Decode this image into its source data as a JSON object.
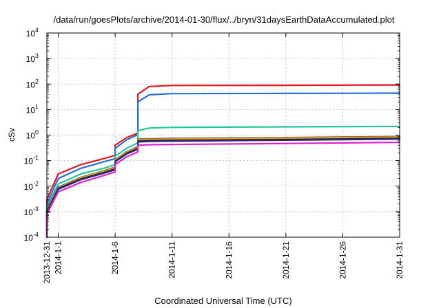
{
  "chart_data": {
    "type": "line",
    "title": "/data/run/goesPlots/archive/2014-01-30/flux/../bryn/31daysEarthDataAccumulated.plot",
    "xlabel": "Coordinated Universal Time (UTC)",
    "ylabel": "cSv",
    "yscale": "log",
    "ylim": [
      0.0001,
      10000
    ],
    "xlim": [
      "2013-12-31",
      "2014-01-31"
    ],
    "grid": true,
    "x_ticks": [
      {
        "date": "2013-12-31",
        "label": "2013-12-31"
      },
      {
        "date": "2014-01-01",
        "label": "2014-1-1"
      },
      {
        "date": "2014-01-06",
        "label": "2014-1-6"
      },
      {
        "date": "2014-01-11",
        "label": "2014-1-11"
      },
      {
        "date": "2014-01-16",
        "label": "2014-1-16"
      },
      {
        "date": "2014-01-21",
        "label": "2014-1-21"
      },
      {
        "date": "2014-01-26",
        "label": "2014-1-26"
      },
      {
        "date": "2014-01-31",
        "label": "2014-1-31"
      }
    ],
    "y_ticks": [
      {
        "value": 0.0001,
        "mant": "10",
        "exp": "-4"
      },
      {
        "value": 0.001,
        "mant": "10",
        "exp": "-3"
      },
      {
        "value": 0.01,
        "mant": "10",
        "exp": "-2"
      },
      {
        "value": 0.1,
        "mant": "10",
        "exp": "-1"
      },
      {
        "value": 1,
        "mant": "10",
        "exp": "0"
      },
      {
        "value": 10,
        "mant": "10",
        "exp": "1"
      },
      {
        "value": 100,
        "mant": "10",
        "exp": "2"
      },
      {
        "value": 1000,
        "mant": "10",
        "exp": "3"
      },
      {
        "value": 10000,
        "mant": "10",
        "exp": "4"
      }
    ],
    "series": [
      {
        "color": "#e8141a",
        "points": [
          [
            "2013-12-31",
            0.0001
          ],
          [
            "2013-12-31",
            0.003
          ],
          [
            "2014-01-01",
            0.03
          ],
          [
            "2014-01-03",
            0.07
          ],
          [
            "2014-01-05",
            0.12
          ],
          [
            "2014-01-06",
            0.16
          ],
          [
            "2014-01-06",
            0.4
          ],
          [
            "2014-01-07",
            0.8
          ],
          [
            "2014-01-08",
            1.2
          ],
          [
            "2014-01-08",
            2
          ],
          [
            "2014-01-08",
            40
          ],
          [
            "2014-01-09",
            80
          ],
          [
            "2014-01-11",
            88
          ],
          [
            "2014-01-21",
            89
          ],
          [
            "2014-01-31",
            92
          ]
        ]
      },
      {
        "color": "#1f6fe0",
        "points": [
          [
            "2013-12-31",
            0.0001
          ],
          [
            "2013-12-31",
            0.002
          ],
          [
            "2014-01-01",
            0.02
          ],
          [
            "2014-01-03",
            0.05
          ],
          [
            "2014-01-05",
            0.09
          ],
          [
            "2014-01-06",
            0.12
          ],
          [
            "2014-01-06",
            0.3
          ],
          [
            "2014-01-07",
            0.65
          ],
          [
            "2014-01-08",
            1.05
          ],
          [
            "2014-01-08",
            1.6
          ],
          [
            "2014-01-08",
            20
          ],
          [
            "2014-01-09",
            38
          ],
          [
            "2014-01-11",
            42
          ],
          [
            "2014-01-21",
            43
          ],
          [
            "2014-01-31",
            44
          ]
        ]
      },
      {
        "color": "#1ec79b",
        "points": [
          [
            "2013-12-31",
            0.0001
          ],
          [
            "2013-12-31",
            0.0015
          ],
          [
            "2014-01-01",
            0.012
          ],
          [
            "2014-01-03",
            0.03
          ],
          [
            "2014-01-05",
            0.05
          ],
          [
            "2014-01-06",
            0.07
          ],
          [
            "2014-01-06",
            0.15
          ],
          [
            "2014-01-07",
            0.3
          ],
          [
            "2014-01-08",
            0.5
          ],
          [
            "2014-01-08",
            0.8
          ],
          [
            "2014-01-08",
            1.5
          ],
          [
            "2014-01-09",
            1.9
          ],
          [
            "2014-01-11",
            2
          ],
          [
            "2014-01-21",
            2.1
          ],
          [
            "2014-01-31",
            2.2
          ]
        ]
      },
      {
        "color": "#555555",
        "points": [
          [
            "2013-12-31",
            0.0001
          ],
          [
            "2013-12-31",
            0.0012
          ],
          [
            "2014-01-01",
            0.009
          ],
          [
            "2014-01-03",
            0.022
          ],
          [
            "2014-01-05",
            0.04
          ],
          [
            "2014-01-06",
            0.055
          ],
          [
            "2014-01-06",
            0.11
          ],
          [
            "2014-01-07",
            0.22
          ],
          [
            "2014-01-08",
            0.35
          ],
          [
            "2014-01-08",
            0.55
          ],
          [
            "2014-01-08",
            0.7
          ],
          [
            "2014-01-09",
            0.72
          ],
          [
            "2014-01-11",
            0.74
          ],
          [
            "2014-01-21",
            0.8
          ],
          [
            "2014-01-31",
            0.88
          ]
        ]
      },
      {
        "color": "#e8a020",
        "points": [
          [
            "2013-12-31",
            0.0001
          ],
          [
            "2013-12-31",
            0.0011
          ],
          [
            "2014-01-01",
            0.0085
          ],
          [
            "2014-01-03",
            0.021
          ],
          [
            "2014-01-05",
            0.038
          ],
          [
            "2014-01-06",
            0.052
          ],
          [
            "2014-01-06",
            0.105
          ],
          [
            "2014-01-07",
            0.21
          ],
          [
            "2014-01-08",
            0.33
          ],
          [
            "2014-01-08",
            0.52
          ],
          [
            "2014-01-08",
            0.66
          ],
          [
            "2014-01-09",
            0.68
          ],
          [
            "2014-01-11",
            0.7
          ],
          [
            "2014-01-21",
            0.76
          ],
          [
            "2014-01-31",
            0.84
          ]
        ]
      },
      {
        "color": "#1a1a1a",
        "points": [
          [
            "2013-12-31",
            0.0001
          ],
          [
            "2013-12-31",
            0.001
          ],
          [
            "2014-01-01",
            0.008
          ],
          [
            "2014-01-03",
            0.019
          ],
          [
            "2014-01-05",
            0.034
          ],
          [
            "2014-01-06",
            0.047
          ],
          [
            "2014-01-06",
            0.095
          ],
          [
            "2014-01-07",
            0.19
          ],
          [
            "2014-01-08",
            0.3
          ],
          [
            "2014-01-08",
            0.46
          ],
          [
            "2014-01-08",
            0.58
          ],
          [
            "2014-01-09",
            0.6
          ],
          [
            "2014-01-11",
            0.62
          ],
          [
            "2014-01-21",
            0.67
          ],
          [
            "2014-01-31",
            0.74
          ]
        ]
      },
      {
        "color": "#2a2a8a",
        "points": [
          [
            "2013-12-31",
            0.0001
          ],
          [
            "2013-12-31",
            0.0009
          ],
          [
            "2014-01-01",
            0.0075
          ],
          [
            "2014-01-03",
            0.018
          ],
          [
            "2014-01-05",
            0.032
          ],
          [
            "2014-01-06",
            0.044
          ],
          [
            "2014-01-06",
            0.09
          ],
          [
            "2014-01-07",
            0.18
          ],
          [
            "2014-01-08",
            0.28
          ],
          [
            "2014-01-08",
            0.43
          ],
          [
            "2014-01-08",
            0.54
          ],
          [
            "2014-01-09",
            0.56
          ],
          [
            "2014-01-11",
            0.58
          ],
          [
            "2014-01-21",
            0.63
          ],
          [
            "2014-01-31",
            0.7
          ]
        ]
      },
      {
        "color": "#e020c8",
        "points": [
          [
            "2013-12-31",
            0.0001
          ],
          [
            "2013-12-31",
            0.0008
          ],
          [
            "2014-01-01",
            0.006
          ],
          [
            "2014-01-03",
            0.014
          ],
          [
            "2014-01-05",
            0.026
          ],
          [
            "2014-01-06",
            0.036
          ],
          [
            "2014-01-06",
            0.07
          ],
          [
            "2014-01-07",
            0.14
          ],
          [
            "2014-01-08",
            0.22
          ],
          [
            "2014-01-08",
            0.33
          ],
          [
            "2014-01-08",
            0.4
          ],
          [
            "2014-01-09",
            0.42
          ],
          [
            "2014-01-11",
            0.43
          ],
          [
            "2014-01-21",
            0.47
          ],
          [
            "2014-01-31",
            0.52
          ]
        ]
      }
    ]
  }
}
